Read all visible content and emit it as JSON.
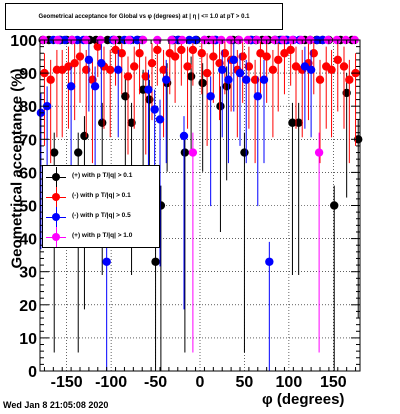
{
  "title": "Geometrical acceptance for Global vs φ (degrees) at | η | <= 1.0 at pT > 0.1",
  "xlabel": "φ (degrees)",
  "ylabel": "Geometrical acceptance (%)",
  "timestamp": "Wed Jan  8 21:05:08 2020",
  "legend": [
    {
      "label": "(+) with p T/|q| > 0.1",
      "color": "#000000"
    },
    {
      "label": "(-) with p T/|q| > 0.1",
      "color": "#ff0000"
    },
    {
      "label": "(-) with p T/|q| > 0.5",
      "color": "#0000ff"
    },
    {
      "label": "(+) with p T/|q| > 1.0",
      "color": "#ff00ff"
    }
  ],
  "chart_data": {
    "type": "scatter",
    "xlim": [
      -180,
      180
    ],
    "ylim": [
      0,
      100
    ],
    "xticks": [
      -150,
      -100,
      -50,
      0,
      50,
      100,
      150
    ],
    "yticks": [
      0,
      10,
      20,
      30,
      40,
      50,
      60,
      70,
      80,
      90,
      100
    ],
    "grid": true,
    "legend_position": "middle-left",
    "series": [
      {
        "name": "(+) with p T/|q| > 0.1",
        "color": "#000000",
        "x": [
          -177,
          -170,
          -164,
          -157,
          -150,
          -144,
          -137,
          -130,
          -124,
          -117,
          -110,
          -104,
          -97,
          -91,
          -84,
          -77,
          -70,
          -64,
          -57,
          -50,
          -44,
          -37,
          -30,
          -24,
          -17,
          -10,
          -4,
          3,
          10,
          17,
          23,
          30,
          37,
          43,
          50,
          57,
          63,
          70,
          77,
          84,
          90,
          97,
          104,
          111,
          118,
          124,
          131,
          138,
          145,
          151,
          158,
          165,
          171,
          178
        ],
        "y": [
          100,
          100,
          66,
          100,
          100,
          100,
          66,
          71,
          100,
          100,
          75,
          100,
          100,
          100,
          83,
          75,
          100,
          85,
          82,
          33,
          50,
          87,
          100,
          100,
          66,
          89,
          100,
          87,
          100,
          100,
          80,
          86,
          100,
          100,
          66,
          100,
          100,
          100,
          100,
          100,
          100,
          100,
          75,
          75,
          100,
          100,
          100,
          100,
          100,
          50,
          100,
          84,
          100,
          70
        ]
      },
      {
        "name": "(-) with p T/|q| > 0.1",
        "color": "#ff0000",
        "x": [
          -175,
          -168,
          -161,
          -155,
          -148,
          -141,
          -135,
          -128,
          -121,
          -115,
          -108,
          -101,
          -95,
          -88,
          -81,
          -74,
          -68,
          -61,
          -54,
          -48,
          -41,
          -34,
          -28,
          -21,
          -14,
          -8,
          2,
          8,
          15,
          22,
          28,
          35,
          42,
          48,
          55,
          62,
          68,
          75,
          82,
          88,
          95,
          102,
          108,
          115,
          122,
          128,
          135,
          142,
          148,
          155,
          162,
          168,
          175
        ],
        "y": [
          90,
          88,
          91,
          91,
          92,
          93,
          95,
          91,
          88,
          98,
          92,
          91,
          97,
          96,
          89,
          92,
          96,
          89,
          93,
          97,
          91,
          96,
          95,
          97,
          92,
          97,
          96,
          90,
          95,
          93,
          96,
          94,
          91,
          95,
          92,
          88,
          96,
          95,
          91,
          94,
          96,
          97,
          92,
          91,
          93,
          96,
          88,
          92,
          91,
          94,
          92,
          88,
          90
        ]
      },
      {
        "name": "(-) with p T/|q| > 0.5",
        "color": "#0000ff",
        "x": [
          -179,
          -172,
          -165,
          -158,
          -152,
          -145,
          -138,
          -131,
          -125,
          -118,
          -111,
          -105,
          -98,
          -92,
          -85,
          -78,
          -71,
          -65,
          -58,
          -51,
          -45,
          -38,
          -31,
          -25,
          -18,
          -12,
          -5,
          5,
          12,
          18,
          25,
          32,
          38,
          45,
          52,
          58,
          65,
          72,
          78,
          85,
          92,
          98,
          105,
          112,
          118,
          125,
          132,
          138
        ],
        "y": [
          78,
          80,
          100,
          100,
          100,
          86,
          100,
          100,
          94,
          86,
          93,
          33,
          100,
          91,
          100,
          100,
          100,
          100,
          85,
          79,
          76,
          88,
          100,
          100,
          71,
          100,
          100,
          100,
          83,
          100,
          91,
          88,
          94,
          90,
          88,
          100,
          83,
          88,
          33,
          100,
          100,
          100,
          100,
          100,
          92,
          91,
          100,
          100
        ]
      },
      {
        "name": "(+) with p T/|q| > 1.0",
        "color": "#ff00ff",
        "x": [
          -176,
          -160,
          -144,
          -128,
          -112,
          -96,
          -80,
          -64,
          -48,
          -32,
          -20,
          -8,
          5,
          14,
          24,
          34,
          44,
          54,
          64,
          74,
          84,
          94,
          104,
          114,
          124,
          134,
          144,
          154,
          164,
          174
        ],
        "y": [
          100,
          100,
          100,
          100,
          100,
          100,
          100,
          100,
          100,
          100,
          100,
          66,
          100,
          100,
          100,
          100,
          100,
          100,
          100,
          100,
          100,
          100,
          100,
          100,
          100,
          66,
          100,
          100,
          100,
          100
        ]
      }
    ]
  }
}
